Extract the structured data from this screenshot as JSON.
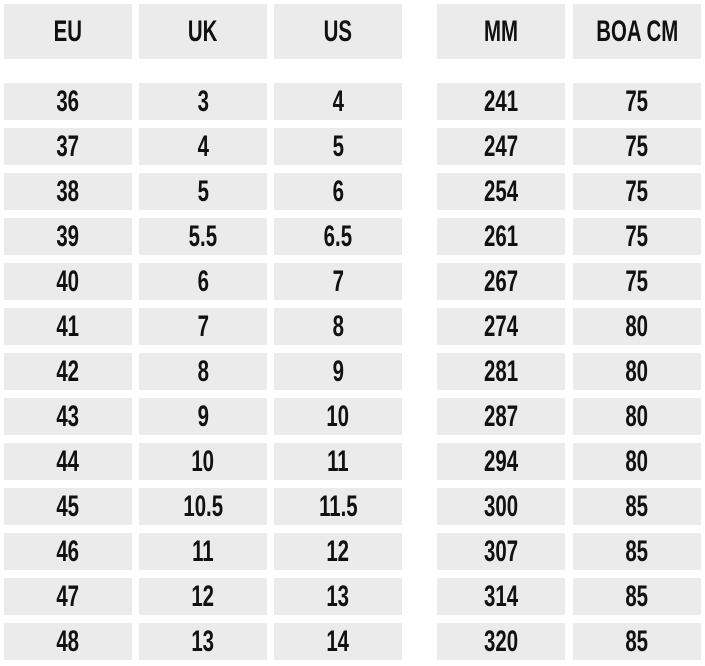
{
  "table": {
    "headers": [
      "EU",
      "UK",
      "US",
      "MM",
      "BOA CM"
    ],
    "rows": [
      [
        "36",
        "3",
        "4",
        "241",
        "75"
      ],
      [
        "37",
        "4",
        "5",
        "247",
        "75"
      ],
      [
        "38",
        "5",
        "6",
        "254",
        "75"
      ],
      [
        "39",
        "5.5",
        "6.5",
        "261",
        "75"
      ],
      [
        "40",
        "6",
        "7",
        "267",
        "75"
      ],
      [
        "41",
        "7",
        "8",
        "274",
        "80"
      ],
      [
        "42",
        "8",
        "9",
        "281",
        "80"
      ],
      [
        "43",
        "9",
        "10",
        "287",
        "80"
      ],
      [
        "44",
        "10",
        "11",
        "294",
        "80"
      ],
      [
        "45",
        "10.5",
        "11.5",
        "300",
        "85"
      ],
      [
        "46",
        "11",
        "12",
        "307",
        "85"
      ],
      [
        "47",
        "12",
        "13",
        "314",
        "85"
      ],
      [
        "48",
        "13",
        "14",
        "320",
        "85"
      ]
    ]
  }
}
